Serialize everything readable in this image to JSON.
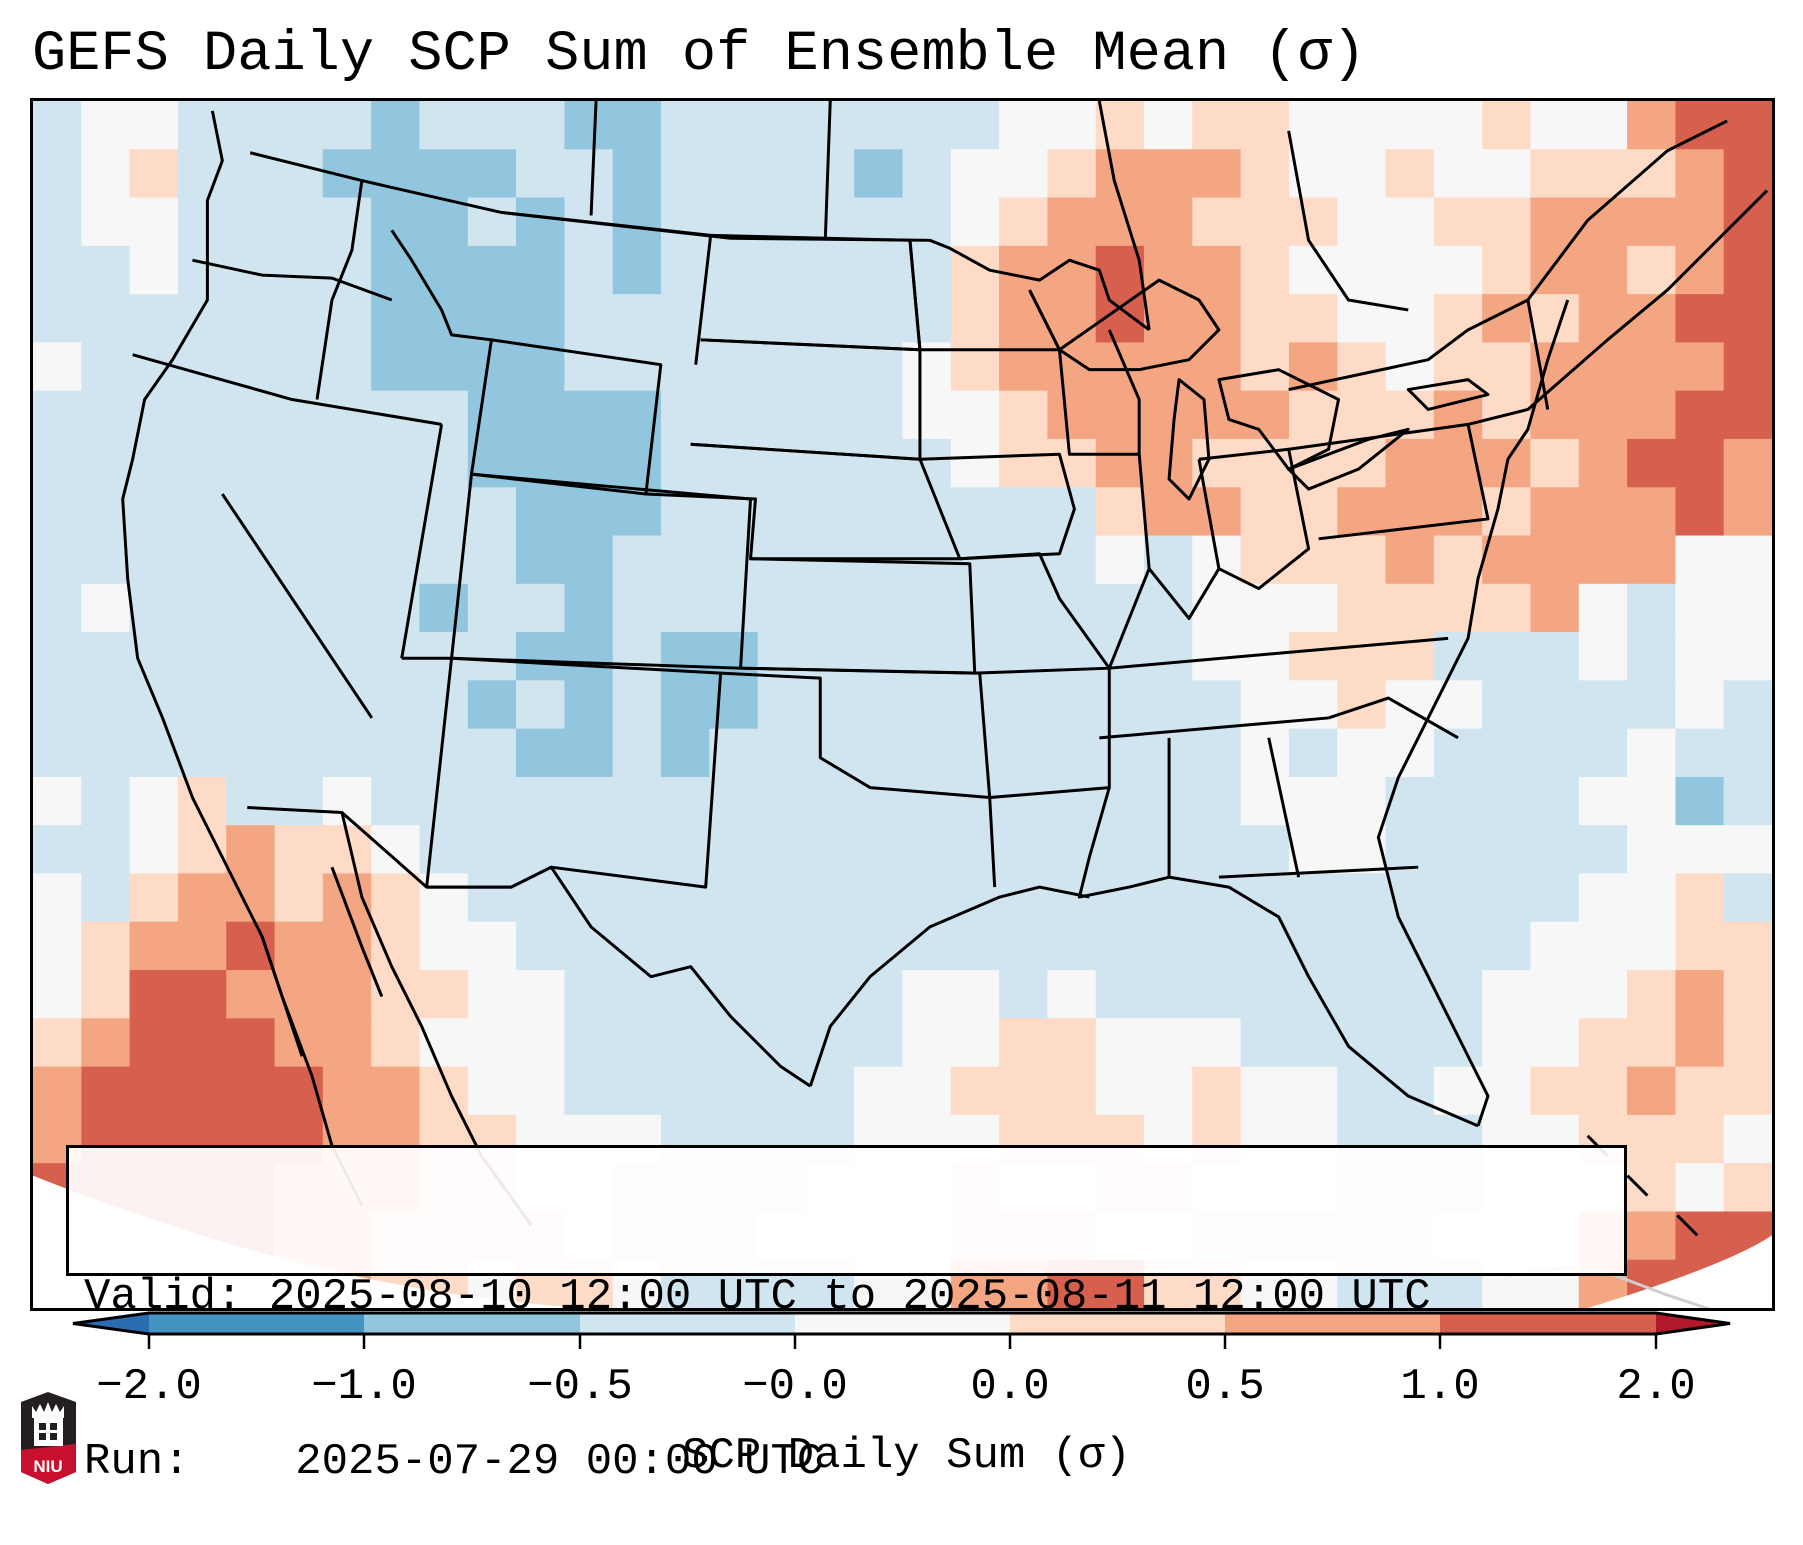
{
  "title": "GEFS Daily SCP Sum of Ensemble Mean (σ)",
  "info": {
    "valid_label": "Valid:",
    "valid_value": "2025-08-10 12:00 UTC to 2025-08-11 12:00 UTC",
    "run_label": "Run:",
    "run_value": "2025-07-29 00:00 UTC"
  },
  "colorbar": {
    "label": "SCP Daily Sum (σ)",
    "ticks": [
      "−2.0",
      "−1.0",
      "−0.5",
      "−0.0",
      "0.0",
      "0.5",
      "1.0",
      "2.0"
    ],
    "bins": [
      {
        "range": "< -2.0",
        "color": "#2b6cb0",
        "extend": "min"
      },
      {
        "range": "-2.0 to -1.0",
        "color": "#4393c3"
      },
      {
        "range": "-1.0 to -0.5",
        "color": "#92c5de"
      },
      {
        "range": "-0.5 to -0.0",
        "color": "#d1e5f0"
      },
      {
        "range": "-0.0 to 0.0",
        "color": "#f7f7f7"
      },
      {
        "range": "0.0 to 0.5",
        "color": "#fddbc7"
      },
      {
        "range": "0.5 to 1.0",
        "color": "#f4a582"
      },
      {
        "range": "1.0 to 2.0",
        "color": "#d6604d"
      },
      {
        "range": "> 2.0",
        "color": "#b2182b",
        "extend": "max"
      }
    ]
  },
  "logo": {
    "text": "NIU",
    "name": "niu-logo"
  },
  "chart_data": {
    "type": "heatmap",
    "title": "GEFS Daily SCP Sum of Ensemble Mean (σ)",
    "colorbar_label": "SCP Daily Sum (σ)",
    "region": "CONUS, southern Canada, northern Mexico, Gulf of Mexico, western Atlantic",
    "legend": "bottom",
    "levels": [
      -2.0,
      -1.0,
      -0.5,
      -0.0,
      0.0,
      0.5,
      1.0,
      2.0
    ],
    "category_key": {
      "0": "-2.0 to -1.0",
      "1": "-1.0 to -0.5",
      "2": "-0.5 to 0.0",
      "3": "0.0 to 0.5",
      "4": "0.5 to 1.0",
      "5": "1.0 to 2.0",
      "6": "> 2.0",
      ".": "no data"
    },
    "grid_cols": 36,
    "grid_rows": 25,
    "grid": [
      "233222212221122222223343443333433566",
      "234222111122122221233455543343344456",
      "233222211212122222234555444334455556",
      "223222211112122222245565543333455456",
      "222222211112222222245565544334545566",
      "322222211112222222345555545434455556",
      "222222222111122222334555554445455566",
      "222222222111122222234455444455545665",
      "222222222211122222222245544555455565",
      "222222222211222222222232344454555533",
      "232222221221222222222222333444453233",
      "222222222211211222222222334442223233",
      "222222222121211222222222233433222232",
      "222222222211212222222222232332222322",
      "323422322222222222222222233322223312",
      "223454432222222222222222223322222333",
      "324554543222222222222222222222223342",
      "345565543322222222222222222222233344",
      "346655544332222222332322222222333454",
      "456665543332222222334433322222334454",
      "566666554332222223344433433223344544",
      "566666554433322223334443433222334443",
      "666665554433222233343344333222333434",
      ".66665544443222333344433222223335566",
      "..566554434432222335566443322233566.."
    ]
  }
}
